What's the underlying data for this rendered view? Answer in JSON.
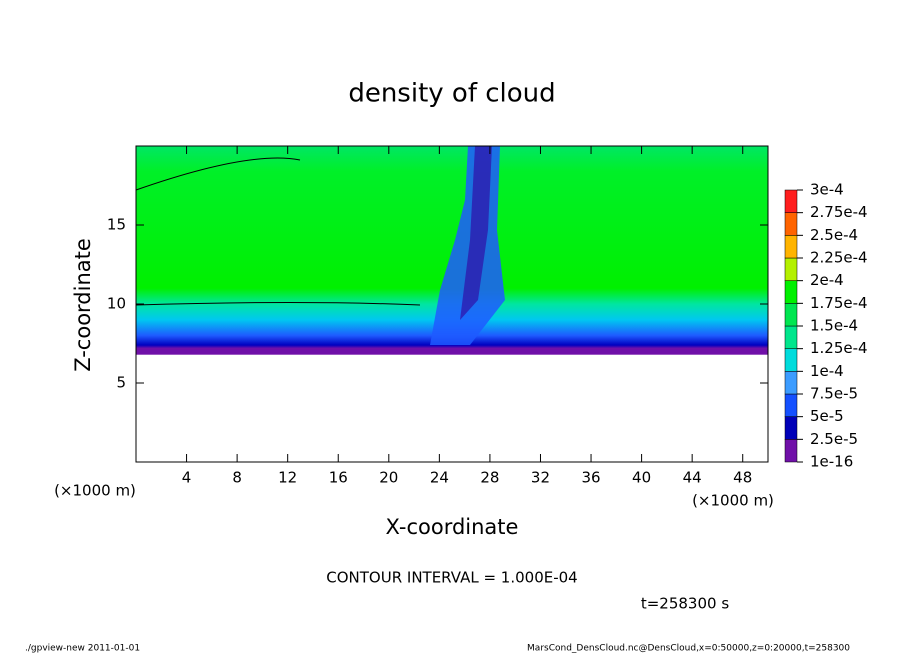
{
  "chart_data": {
    "type": "contour",
    "title": "density of cloud",
    "xlabel": "X-coordinate",
    "ylabel": "Z-coordinate",
    "x_unit": "(×1000 m)",
    "y_unit": "(×1000 m)",
    "xlim": [
      0,
      50
    ],
    "ylim": [
      0,
      20
    ],
    "xticks": [
      4,
      8,
      12,
      16,
      20,
      24,
      28,
      32,
      36,
      40,
      44,
      48
    ],
    "yticks": [
      5,
      10,
      15
    ],
    "colorbar": {
      "levels": [
        {
          "value": 1e-16,
          "label": "1e-16"
        },
        {
          "value": 2.5e-05,
          "label": "2.5e-5"
        },
        {
          "value": 5e-05,
          "label": "5e-5"
        },
        {
          "value": 7.5e-05,
          "label": "7.5e-5"
        },
        {
          "value": 0.0001,
          "label": "1e-4"
        },
        {
          "value": 0.000125,
          "label": "1.25e-4"
        },
        {
          "value": 0.00015,
          "label": "1.5e-4"
        },
        {
          "value": 0.000175,
          "label": "1.75e-4"
        },
        {
          "value": 0.0002,
          "label": "2e-4"
        },
        {
          "value": 0.000225,
          "label": "2.25e-4"
        },
        {
          "value": 0.00025,
          "label": "2.5e-4"
        },
        {
          "value": 0.000275,
          "label": "2.75e-4"
        },
        {
          "value": 0.0003,
          "label": "3e-4"
        }
      ],
      "colors": [
        "#7010a8",
        "#0000b8",
        "#1450ff",
        "#3c9cff",
        "#00dcdc",
        "#00e68c",
        "#00e650",
        "#00f000",
        "#b4f000",
        "#ffb400",
        "#ff6400",
        "#ff1e1e"
      ]
    },
    "contour_interval": "CONTOUR INTERVAL = 1.000E-04",
    "time": "t=258300 s",
    "footer_left": "./gpview-new  2011-01-01",
    "footer_right": "MarsCond_DensCloud.nc@DensCloud,x=0:50000,z=0:20000,t=258300"
  }
}
